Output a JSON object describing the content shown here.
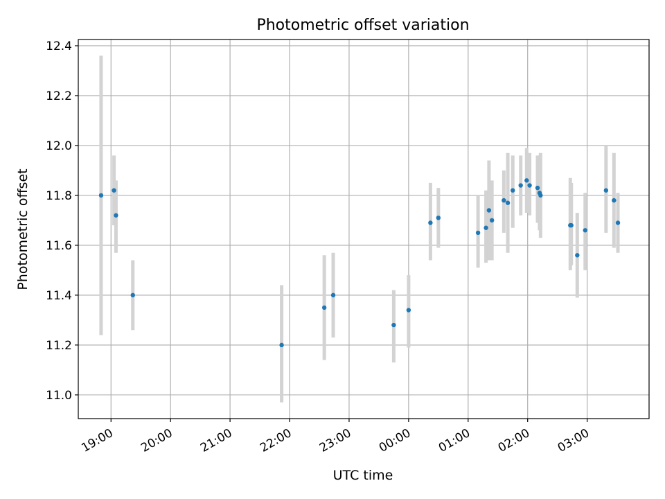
{
  "chart_data": {
    "type": "scatter",
    "title": "Photometric offset variation",
    "xlabel": "UTC time",
    "ylabel": "Photometric offset",
    "x_tick_labels": [
      "19:00",
      "20:00",
      "21:00",
      "22:00",
      "23:00",
      "00:00",
      "01:00",
      "02:00",
      "03:00"
    ],
    "x_ticks_hours": [
      19,
      20,
      21,
      22,
      23,
      24,
      25,
      26,
      27
    ],
    "xlim_hours": [
      18.45,
      28.04
    ],
    "y_tick_labels": [
      "11.0",
      "11.2",
      "11.4",
      "11.6",
      "11.8",
      "12.0",
      "12.2",
      "12.4"
    ],
    "y_ticks": [
      11.0,
      11.2,
      11.4,
      11.6,
      11.8,
      12.0,
      12.2,
      12.4
    ],
    "ylim": [
      10.905,
      12.425
    ],
    "grid": true,
    "point_color": "#1f77b4",
    "errorbar_color": "#d3d3d3",
    "points": [
      {
        "time": "18:50",
        "y": 11.8,
        "ylo": 11.24,
        "yhi": 12.36
      },
      {
        "time": "19:03",
        "y": 11.82,
        "ylo": 11.68,
        "yhi": 11.96
      },
      {
        "time": "19:05",
        "y": 11.72,
        "ylo": 11.57,
        "yhi": 11.86
      },
      {
        "time": "19:22",
        "y": 11.4,
        "ylo": 11.26,
        "yhi": 11.54
      },
      {
        "time": "21:52",
        "y": 11.2,
        "ylo": 10.97,
        "yhi": 11.44
      },
      {
        "time": "22:35",
        "y": 11.35,
        "ylo": 11.14,
        "yhi": 11.56
      },
      {
        "time": "22:44",
        "y": 11.4,
        "ylo": 11.23,
        "yhi": 11.57
      },
      {
        "time": "23:45",
        "y": 11.28,
        "ylo": 11.13,
        "yhi": 11.42
      },
      {
        "time": "00:00",
        "y": 11.34,
        "ylo": 11.19,
        "yhi": 11.48
      },
      {
        "time": "00:22",
        "y": 11.69,
        "ylo": 11.54,
        "yhi": 11.85
      },
      {
        "time": "00:30",
        "y": 11.71,
        "ylo": 11.59,
        "yhi": 11.83
      },
      {
        "time": "01:10",
        "y": 11.65,
        "ylo": 11.51,
        "yhi": 11.8
      },
      {
        "time": "01:18",
        "y": 11.67,
        "ylo": 11.53,
        "yhi": 11.82
      },
      {
        "time": "01:21",
        "y": 11.74,
        "ylo": 11.54,
        "yhi": 11.94
      },
      {
        "time": "01:24",
        "y": 11.7,
        "ylo": 11.54,
        "yhi": 11.86
      },
      {
        "time": "01:36",
        "y": 11.78,
        "ylo": 11.65,
        "yhi": 11.9
      },
      {
        "time": "01:40",
        "y": 11.77,
        "ylo": 11.57,
        "yhi": 11.97
      },
      {
        "time": "01:45",
        "y": 11.82,
        "ylo": 11.67,
        "yhi": 11.96
      },
      {
        "time": "01:53",
        "y": 11.84,
        "ylo": 11.72,
        "yhi": 11.96
      },
      {
        "time": "01:59",
        "y": 11.86,
        "ylo": 11.73,
        "yhi": 11.99
      },
      {
        "time": "02:02",
        "y": 11.84,
        "ylo": 11.72,
        "yhi": 11.97
      },
      {
        "time": "02:10",
        "y": 11.83,
        "ylo": 11.69,
        "yhi": 11.96
      },
      {
        "time": "02:12",
        "y": 11.81,
        "ylo": 11.66,
        "yhi": 11.96
      },
      {
        "time": "02:13",
        "y": 11.8,
        "ylo": 11.63,
        "yhi": 11.97
      },
      {
        "time": "02:43",
        "y": 11.68,
        "ylo": 11.5,
        "yhi": 11.87
      },
      {
        "time": "02:44",
        "y": 11.68,
        "ylo": 11.52,
        "yhi": 11.85
      },
      {
        "time": "02:50",
        "y": 11.56,
        "ylo": 11.39,
        "yhi": 11.73
      },
      {
        "time": "02:58",
        "y": 11.66,
        "ylo": 11.5,
        "yhi": 11.81
      },
      {
        "time": "03:19",
        "y": 11.82,
        "ylo": 11.65,
        "yhi": 12.0
      },
      {
        "time": "03:27",
        "y": 11.78,
        "ylo": 11.59,
        "yhi": 11.97
      },
      {
        "time": "03:31",
        "y": 11.69,
        "ylo": 11.57,
        "yhi": 11.81
      }
    ]
  }
}
